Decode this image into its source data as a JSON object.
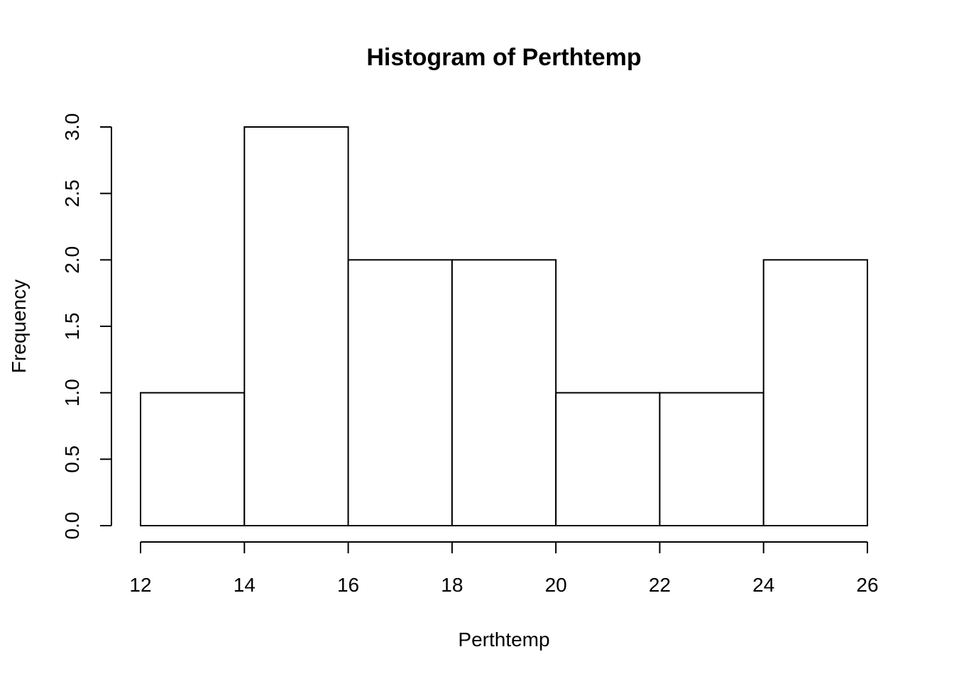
{
  "chart_data": {
    "type": "bar",
    "title": "Histogram of Perthtemp",
    "xlabel": "Perthtemp",
    "ylabel": "Frequency",
    "bins": [
      {
        "start": 12,
        "end": 14,
        "count": 1
      },
      {
        "start": 14,
        "end": 16,
        "count": 3
      },
      {
        "start": 16,
        "end": 18,
        "count": 2
      },
      {
        "start": 18,
        "end": 20,
        "count": 2
      },
      {
        "start": 20,
        "end": 22,
        "count": 1
      },
      {
        "start": 22,
        "end": 24,
        "count": 1
      },
      {
        "start": 24,
        "end": 26,
        "count": 2
      }
    ],
    "xlim": [
      12,
      26
    ],
    "ylim": [
      0,
      3
    ],
    "x_ticks": [
      12,
      14,
      16,
      18,
      20,
      22,
      24,
      26
    ],
    "x_tick_labels": [
      "12",
      "14",
      "16",
      "18",
      "20",
      "22",
      "24",
      "26"
    ],
    "y_ticks": [
      0,
      0.5,
      1,
      1.5,
      2,
      2.5,
      3
    ],
    "y_tick_labels": [
      "0.0",
      "0.5",
      "1.0",
      "1.5",
      "2.0",
      "2.5",
      "3.0"
    ],
    "grid": false,
    "legend": "none",
    "colors": {
      "bar_fill": "#ffffff",
      "bar_stroke": "#000000"
    }
  }
}
